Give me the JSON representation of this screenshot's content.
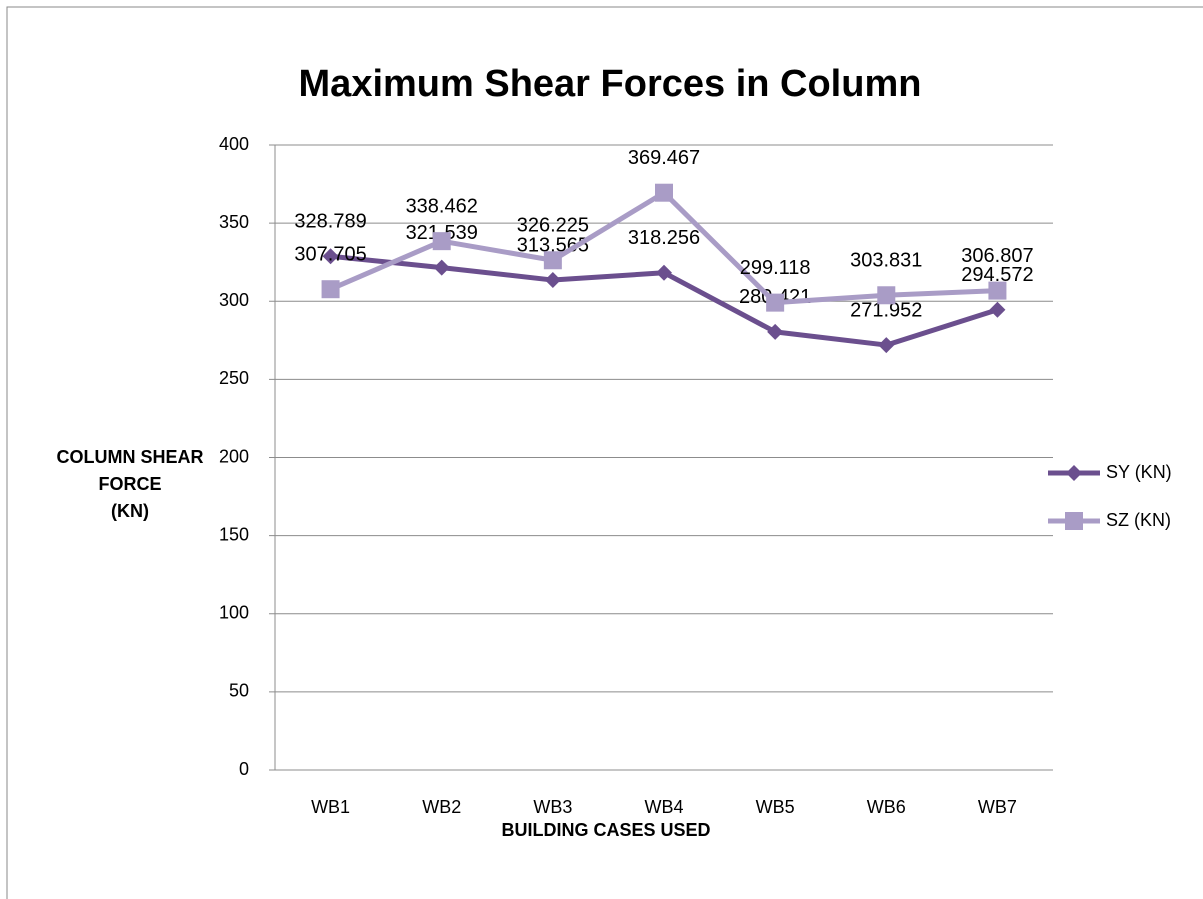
{
  "chart_data": {
    "type": "line",
    "title": "Maximum Shear Forces in Column",
    "x_label": "BUILDING CASES USED",
    "y_label": "COLUMN SHEAR\nFORCE\n(KN)",
    "categories": [
      "WB1",
      "WB2",
      "WB3",
      "WB4",
      "WB5",
      "WB6",
      "WB7"
    ],
    "series": [
      {
        "name": "SY (KN)",
        "color": "#6b4f8e",
        "marker": "diamond",
        "values": [
          328.789,
          321.539,
          313.565,
          318.256,
          280.421,
          271.952,
          294.572
        ]
      },
      {
        "name": "SZ (KN)",
        "color": "#a99cc6",
        "marker": "square",
        "values": [
          307.705,
          338.462,
          326.225,
          369.467,
          299.118,
          303.831,
          306.807
        ]
      }
    ],
    "ylim": [
      0,
      400
    ],
    "yticks": [
      0,
      50,
      100,
      150,
      200,
      250,
      300,
      350,
      400
    ],
    "grid": true,
    "legend": "right"
  }
}
